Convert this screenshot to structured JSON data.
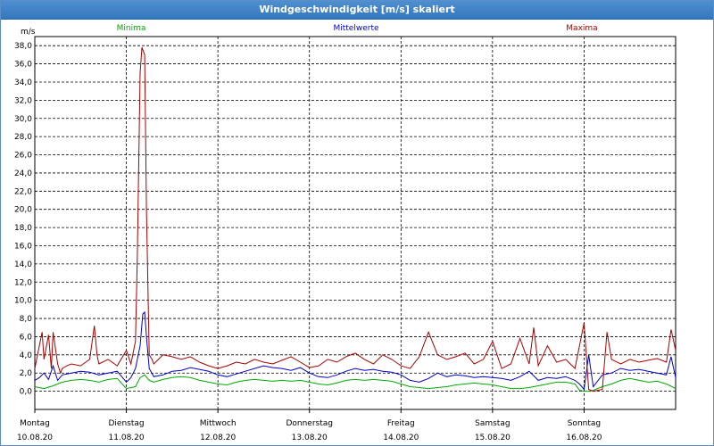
{
  "window": {
    "title": "Windgeschwindigkeit [m/s] skaliert"
  },
  "colors": {
    "min": "#00aa00",
    "mean": "#0000cc",
    "max": "#aa0000",
    "grid": "#000000",
    "title_bg": "#3d82c6"
  },
  "chart_data": {
    "type": "line",
    "title": "Windgeschwindigkeit [m/s] skaliert",
    "ylabel": "m/s",
    "xlabel": "",
    "ylim": [
      -2,
      39
    ],
    "yticks": [
      0,
      2,
      4,
      6,
      8,
      10,
      12,
      14,
      16,
      18,
      20,
      22,
      24,
      26,
      28,
      30,
      32,
      34,
      36,
      38
    ],
    "ytick_labels": [
      "0,0",
      "2,0",
      "4,0",
      "6,0",
      "8,0",
      "10,0",
      "12,0",
      "14,0",
      "16,0",
      "18,0",
      "20,0",
      "22,0",
      "24,0",
      "26,0",
      "28,0",
      "30,0",
      "32,0",
      "34,0",
      "36,0",
      "38,0"
    ],
    "xlim": [
      0,
      7
    ],
    "grid": true,
    "legend_position": "top",
    "days": [
      {
        "x": 0,
        "name": "Montag",
        "date": "10.08.20"
      },
      {
        "x": 1,
        "name": "Dienstag",
        "date": "11.08.20"
      },
      {
        "x": 2,
        "name": "Mittwoch",
        "date": "12.08.20"
      },
      {
        "x": 3,
        "name": "Donnerstag",
        "date": "13.08.20"
      },
      {
        "x": 4,
        "name": "Freitag",
        "date": "14.08.20"
      },
      {
        "x": 5,
        "name": "Samstag",
        "date": "15.08.20"
      },
      {
        "x": 6,
        "name": "Sonntag",
        "date": "16.08.20"
      }
    ],
    "series": [
      {
        "name": "Minima",
        "color": "#00aa00",
        "x": [
          0.0,
          0.1,
          0.2,
          0.3,
          0.4,
          0.5,
          0.6,
          0.7,
          0.8,
          0.9,
          1.0,
          1.1,
          1.15,
          1.2,
          1.25,
          1.3,
          1.4,
          1.5,
          1.6,
          1.7,
          1.8,
          1.9,
          2.0,
          2.1,
          2.2,
          2.3,
          2.4,
          2.5,
          2.6,
          2.7,
          2.8,
          2.9,
          3.0,
          3.1,
          3.2,
          3.3,
          3.4,
          3.5,
          3.6,
          3.7,
          3.8,
          3.9,
          4.0,
          4.1,
          4.2,
          4.3,
          4.4,
          4.5,
          4.6,
          4.7,
          4.8,
          4.9,
          5.0,
          5.1,
          5.2,
          5.3,
          5.4,
          5.5,
          5.6,
          5.7,
          5.8,
          5.9,
          5.95,
          6.0,
          6.05,
          6.1,
          6.2,
          6.3,
          6.4,
          6.5,
          6.6,
          6.7,
          6.8,
          6.9,
          7.0
        ],
        "values": [
          0.5,
          0.3,
          0.6,
          1.0,
          1.2,
          1.3,
          1.2,
          1.0,
          1.3,
          1.4,
          0.3,
          0.5,
          1.5,
          1.8,
          1.2,
          1.0,
          1.3,
          1.5,
          1.6,
          1.5,
          1.2,
          1.0,
          0.8,
          0.7,
          1.0,
          1.2,
          1.3,
          1.2,
          1.1,
          1.2,
          1.1,
          1.2,
          1.0,
          0.8,
          0.7,
          0.9,
          1.2,
          1.3,
          1.2,
          1.3,
          1.2,
          1.1,
          0.8,
          0.5,
          0.4,
          0.3,
          0.4,
          0.5,
          0.7,
          0.8,
          0.9,
          0.8,
          0.7,
          0.5,
          0.3,
          0.3,
          0.4,
          0.6,
          0.8,
          1.0,
          1.0,
          0.8,
          0.1,
          0.0,
          0.0,
          0.1,
          0.5,
          0.8,
          1.2,
          1.4,
          1.2,
          1.0,
          1.1,
          0.8,
          0.3
        ]
      },
      {
        "name": "Mittelwerte",
        "color": "#0000cc",
        "x": [
          0.0,
          0.05,
          0.1,
          0.15,
          0.2,
          0.25,
          0.3,
          0.4,
          0.5,
          0.6,
          0.7,
          0.8,
          0.9,
          1.0,
          1.05,
          1.1,
          1.15,
          1.18,
          1.2,
          1.22,
          1.25,
          1.3,
          1.4,
          1.5,
          1.6,
          1.7,
          1.8,
          1.9,
          2.0,
          2.1,
          2.2,
          2.3,
          2.4,
          2.5,
          2.6,
          2.7,
          2.8,
          2.9,
          3.0,
          3.1,
          3.2,
          3.3,
          3.4,
          3.5,
          3.6,
          3.7,
          3.8,
          3.9,
          4.0,
          4.1,
          4.2,
          4.3,
          4.4,
          4.5,
          4.6,
          4.7,
          4.8,
          4.9,
          5.0,
          5.1,
          5.2,
          5.3,
          5.4,
          5.5,
          5.6,
          5.7,
          5.8,
          5.9,
          5.95,
          6.0,
          6.05,
          6.1,
          6.2,
          6.3,
          6.4,
          6.5,
          6.6,
          6.7,
          6.8,
          6.9,
          6.95,
          7.0
        ],
        "values": [
          1.2,
          1.5,
          2.0,
          1.3,
          2.8,
          1.2,
          1.8,
          2.0,
          2.2,
          2.1,
          1.8,
          2.0,
          2.2,
          1.0,
          1.5,
          2.5,
          5.0,
          8.5,
          8.7,
          6.0,
          2.5,
          1.6,
          1.8,
          2.2,
          2.3,
          2.6,
          2.4,
          2.2,
          1.8,
          1.6,
          1.9,
          2.2,
          2.5,
          2.8,
          2.6,
          2.5,
          2.3,
          2.6,
          2.0,
          1.6,
          1.5,
          1.8,
          2.2,
          2.5,
          2.3,
          2.4,
          2.2,
          2.1,
          1.8,
          1.2,
          1.0,
          1.4,
          2.0,
          1.6,
          1.8,
          1.7,
          1.5,
          1.6,
          1.5,
          1.4,
          1.2,
          1.6,
          2.2,
          1.2,
          1.5,
          1.4,
          1.6,
          1.2,
          0.8,
          0.2,
          4.0,
          0.5,
          1.8,
          2.0,
          2.5,
          2.3,
          2.4,
          2.2,
          2.0,
          1.8,
          3.8,
          1.5
        ]
      },
      {
        "name": "Maxima",
        "color": "#aa0000",
        "x": [
          0.0,
          0.05,
          0.08,
          0.1,
          0.15,
          0.18,
          0.2,
          0.25,
          0.28,
          0.3,
          0.35,
          0.4,
          0.5,
          0.6,
          0.65,
          0.68,
          0.7,
          0.8,
          0.9,
          1.0,
          1.05,
          1.1,
          1.12,
          1.15,
          1.17,
          1.2,
          1.22,
          1.25,
          1.28,
          1.3,
          1.4,
          1.5,
          1.6,
          1.7,
          1.8,
          1.9,
          2.0,
          2.1,
          2.2,
          2.3,
          2.4,
          2.5,
          2.6,
          2.7,
          2.8,
          2.9,
          3.0,
          3.1,
          3.2,
          3.3,
          3.4,
          3.5,
          3.6,
          3.7,
          3.8,
          3.9,
          4.0,
          4.1,
          4.2,
          4.3,
          4.4,
          4.5,
          4.6,
          4.7,
          4.8,
          4.9,
          5.0,
          5.1,
          5.2,
          5.3,
          5.4,
          5.45,
          5.5,
          5.6,
          5.7,
          5.8,
          5.9,
          5.95,
          6.0,
          6.05,
          6.1,
          6.2,
          6.25,
          6.3,
          6.4,
          6.5,
          6.6,
          6.7,
          6.8,
          6.9,
          6.95,
          7.0
        ],
        "values": [
          2.5,
          5.0,
          6.5,
          3.5,
          6.2,
          2.5,
          6.5,
          3.0,
          2.0,
          2.5,
          2.8,
          3.0,
          2.8,
          3.5,
          7.2,
          4.0,
          3.0,
          3.5,
          2.8,
          4.5,
          3.0,
          5.5,
          15.0,
          35.0,
          37.8,
          37.0,
          20.0,
          4.0,
          3.5,
          3.0,
          4.0,
          3.8,
          3.5,
          3.8,
          3.2,
          2.8,
          2.5,
          2.8,
          3.2,
          3.0,
          3.5,
          3.2,
          3.0,
          3.4,
          3.8,
          3.2,
          2.6,
          2.8,
          3.5,
          3.2,
          3.8,
          4.2,
          3.5,
          3.0,
          4.0,
          3.5,
          2.8,
          2.5,
          3.8,
          6.5,
          4.0,
          3.5,
          3.8,
          4.2,
          3.0,
          3.5,
          5.5,
          2.5,
          3.0,
          5.8,
          3.0,
          7.0,
          2.8,
          5.0,
          3.2,
          3.5,
          2.5,
          5.0,
          7.5,
          0.2,
          0.0,
          0.2,
          6.5,
          3.5,
          3.0,
          3.5,
          3.2,
          3.4,
          3.6,
          3.2,
          6.8,
          4.5
        ]
      }
    ]
  }
}
